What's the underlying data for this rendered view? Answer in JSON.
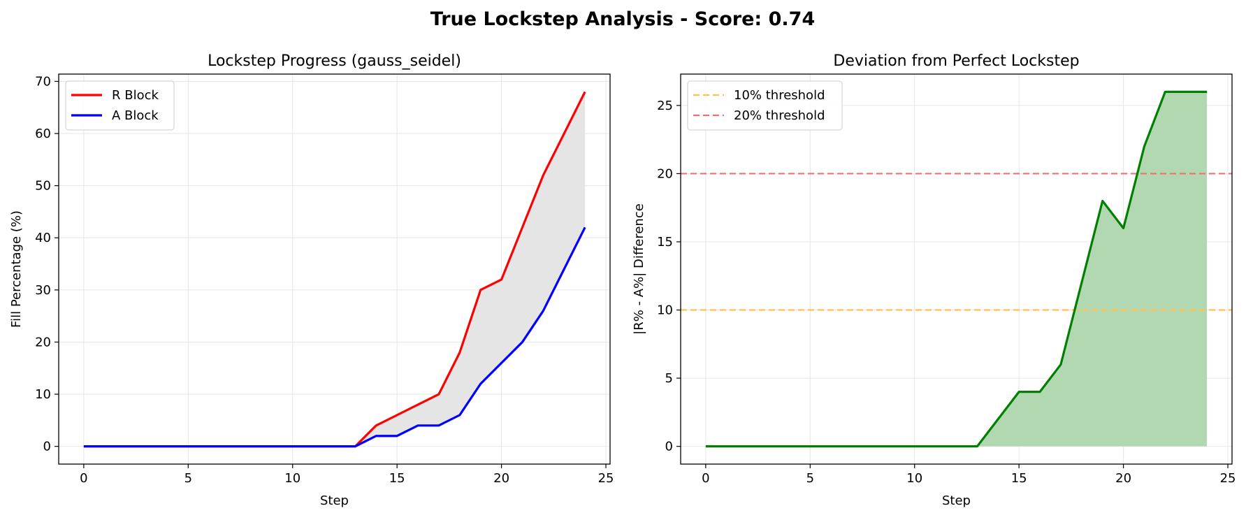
{
  "figure": {
    "suptitle": "True Lockstep Analysis - Score: 0.74"
  },
  "chart_data": [
    {
      "type": "line",
      "title": "Lockstep Progress (gauss_seidel)",
      "xlabel": "Step",
      "ylabel": "Fill Percentage (%)",
      "xlim": [
        -1.2,
        25.2
      ],
      "ylim": [
        -3.4,
        71.4
      ],
      "xticks": [
        0,
        5,
        10,
        15,
        20,
        25
      ],
      "yticks": [
        0,
        10,
        20,
        30,
        40,
        50,
        60,
        70
      ],
      "grid": true,
      "legend_position": "upper-left",
      "fill_between": {
        "series": [
          "R Block",
          "A Block"
        ],
        "color": "#e5e5e5"
      },
      "x": [
        0,
        1,
        2,
        3,
        4,
        5,
        6,
        7,
        8,
        9,
        10,
        11,
        12,
        13,
        14,
        15,
        16,
        17,
        18,
        19,
        20,
        21,
        22,
        23,
        24
      ],
      "series": [
        {
          "name": "R Block",
          "color": "#ff0000",
          "values": [
            0,
            0,
            0,
            0,
            0,
            0,
            0,
            0,
            0,
            0,
            0,
            0,
            0,
            0,
            4,
            6,
            8,
            10,
            18,
            30,
            32,
            42,
            52,
            60,
            68
          ]
        },
        {
          "name": "A Block",
          "color": "#0000ff",
          "values": [
            0,
            0,
            0,
            0,
            0,
            0,
            0,
            0,
            0,
            0,
            0,
            0,
            0,
            0,
            2,
            2,
            4,
            4,
            6,
            12,
            16,
            20,
            26,
            34,
            42
          ]
        }
      ]
    },
    {
      "type": "area",
      "title": "Deviation from Perfect Lockstep",
      "xlabel": "Step",
      "ylabel": "|R% - A%| Difference",
      "xlim": [
        -1.2,
        25.2
      ],
      "ylim": [
        -1.3,
        27.3
      ],
      "xticks": [
        0,
        5,
        10,
        15,
        20,
        25
      ],
      "yticks": [
        0,
        5,
        10,
        15,
        20,
        25
      ],
      "grid": true,
      "legend_position": "upper-left",
      "x": [
        0,
        1,
        2,
        3,
        4,
        5,
        6,
        7,
        8,
        9,
        10,
        11,
        12,
        13,
        14,
        15,
        16,
        17,
        18,
        19,
        20,
        21,
        22,
        23,
        24
      ],
      "series": [
        {
          "name": "",
          "color": "#008000",
          "fill_color": "#b2d8b2",
          "values": [
            0,
            0,
            0,
            0,
            0,
            0,
            0,
            0,
            0,
            0,
            0,
            0,
            0,
            0,
            2,
            4,
            4,
            6,
            12,
            18,
            16,
            22,
            26,
            26,
            26
          ]
        }
      ],
      "thresholds": [
        {
          "name": "10% threshold",
          "value": 10,
          "color": "#ffc04d"
        },
        {
          "name": "20% threshold",
          "value": 20,
          "color": "#f07070"
        }
      ]
    }
  ]
}
